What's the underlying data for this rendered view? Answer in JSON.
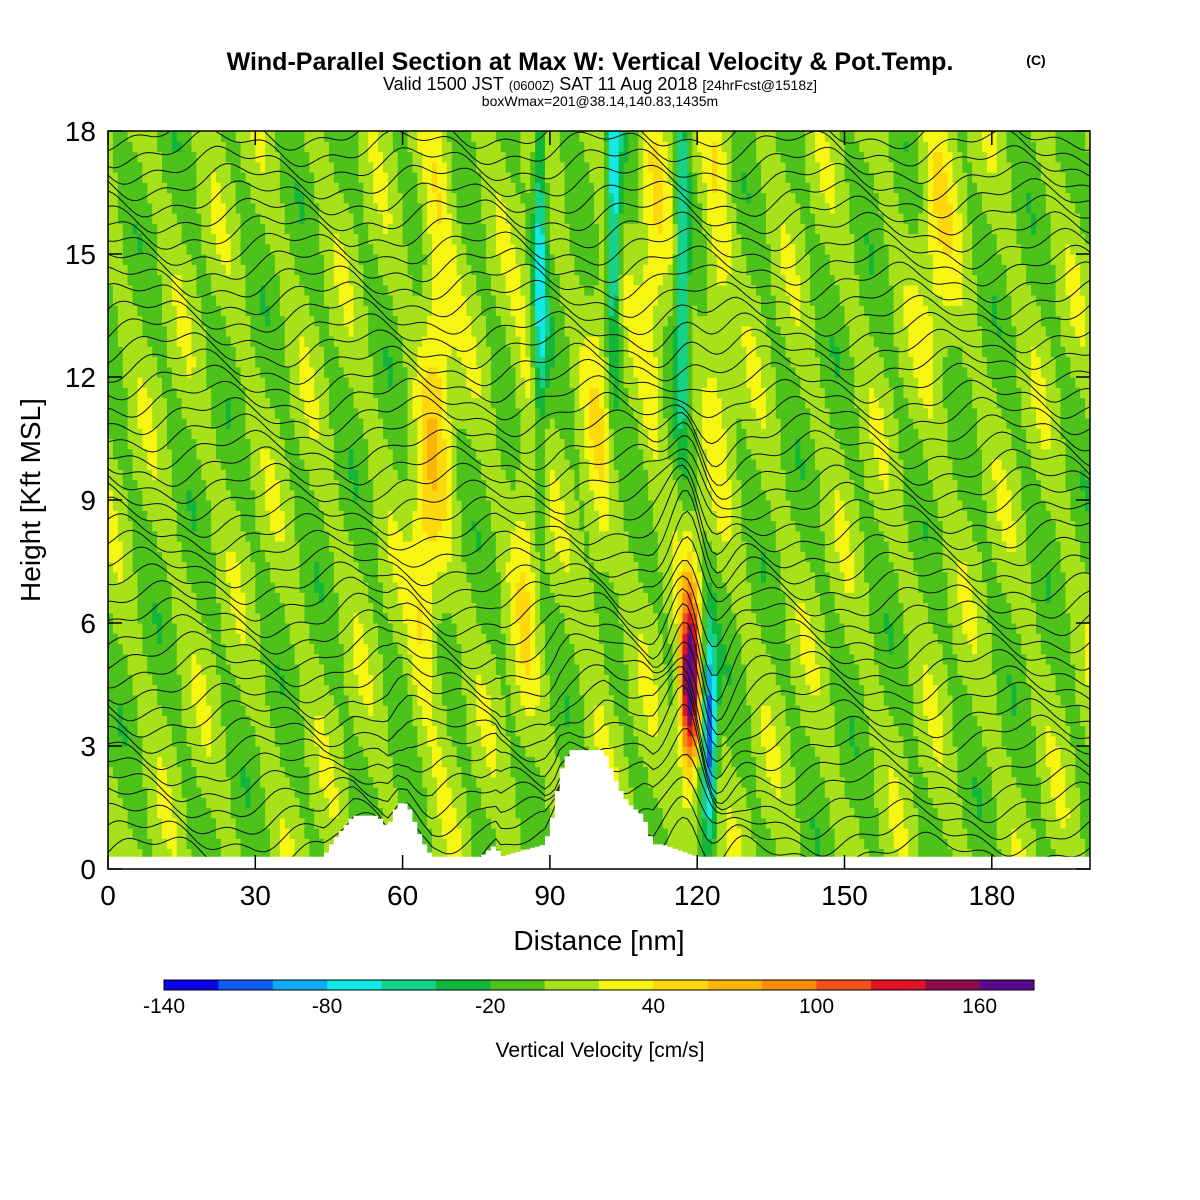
{
  "chart_data": {
    "type": "heatmap",
    "title": "Wind-Parallel Section at Max W: Vertical Velocity & Pot.Temp.",
    "title_mark": "(C)",
    "subtitle": {
      "main": "Valid 1500 JST",
      "utc": "(0600Z)",
      "date": "SAT 11 Aug 2018",
      "fcst": "[24hrFcst@1518z]"
    },
    "box_info": "boxWmax=201@38.14,140.83,1435m",
    "xlabel": "Distance [nm]",
    "ylabel": "Height [Kft MSL]",
    "xlim": [
      0,
      200
    ],
    "ylim": [
      0,
      18
    ],
    "x_ticks": [
      "0",
      "30",
      "60",
      "90",
      "120",
      "150",
      "180"
    ],
    "y_ticks": [
      "0",
      "3",
      "6",
      "9",
      "12",
      "15",
      "18"
    ],
    "colorbar": {
      "label": "Vertical Velocity [cm/s]",
      "tick_labels": [
        "-140",
        "-80",
        "-20",
        "40",
        "100",
        "160"
      ],
      "levels": [
        -140,
        -120,
        -100,
        -80,
        -60,
        -40,
        -20,
        0,
        20,
        40,
        60,
        80,
        100,
        120,
        140,
        160,
        180
      ],
      "colors": [
        "#0a05e6",
        "#0e5cf4",
        "#10aaf6",
        "#11e9e6",
        "#14d28a",
        "#11b63a",
        "#4cc21a",
        "#a6e11a",
        "#f6f612",
        "#fcd80d",
        "#fbb409",
        "#f88d0b",
        "#f2511a",
        "#df1424",
        "#8e0c4c",
        "#5a0a8e"
      ]
    },
    "terrain_profile": {
      "x": [
        0,
        44,
        46,
        48,
        50,
        55,
        57,
        58,
        59,
        61,
        62,
        63,
        64,
        66,
        76,
        79,
        80,
        89,
        90,
        91,
        92,
        94,
        101,
        102,
        103,
        104,
        106,
        109,
        110,
        111,
        112,
        113,
        120,
        200
      ],
      "height": [
        0.3,
        0.3,
        0.7,
        1.0,
        1.3,
        1.3,
        1.0,
        1.3,
        1.6,
        1.6,
        1.3,
        1.0,
        0.7,
        0.3,
        0.3,
        0.6,
        0.3,
        0.6,
        1.0,
        1.5,
        2.3,
        2.9,
        2.9,
        2.6,
        2.3,
        2.0,
        1.6,
        1.3,
        1.0,
        0.6,
        0.6,
        0.6,
        0.3,
        0.3
      ]
    },
    "max_updraft": {
      "x_nm": 118.5,
      "height_kft": 4.5,
      "value_cm_s": 180
    },
    "downdraft_core": {
      "x_nm": 122.5,
      "height_kft": 3.5,
      "value_cm_s": -100
    },
    "isentrope_levels": 44
  }
}
